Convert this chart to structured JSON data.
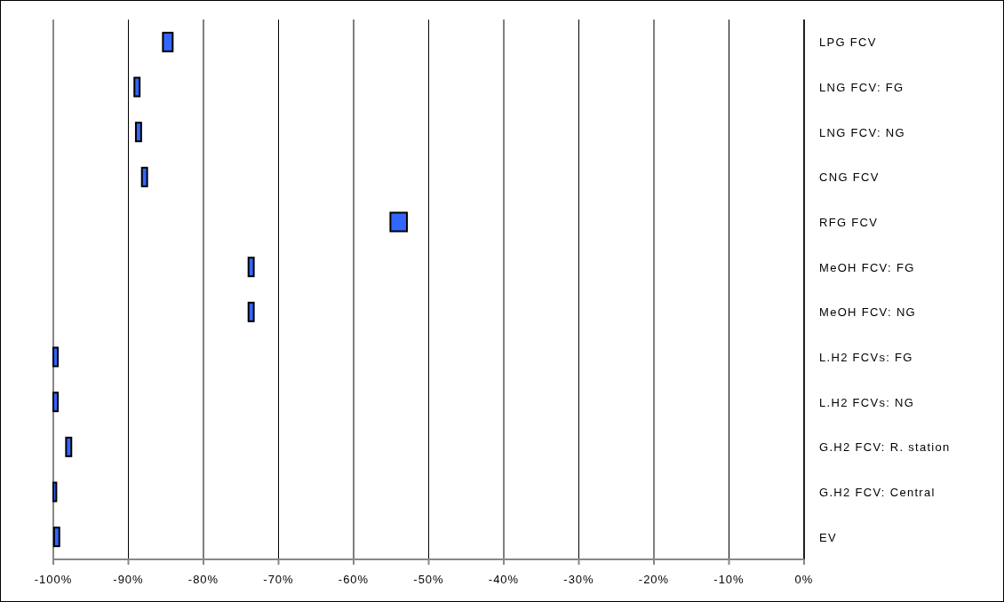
{
  "chart_data": {
    "type": "bar",
    "orientation": "horizontal",
    "categories": [
      "LPG FCV",
      "LNG FCV: FG",
      "LNG FCV: NG",
      "CNG FCV",
      "RFG FCV",
      "MeOH FCV: FG",
      "MeOH FCV: NG",
      "L.H2 FCVs: FG",
      "L.H2 FCVs: NG",
      "G.H2 FCV: R. station",
      "G.H2 FCV: Central",
      "EV"
    ],
    "base": [
      -85.4,
      -89.2,
      -89.0,
      -88.2,
      -55.1,
      -74.0,
      -74.0,
      -100,
      -100,
      -98.3,
      -100,
      -99.9
    ],
    "values": [
      1.3,
      0.7,
      0.7,
      0.7,
      2.2,
      0.7,
      0.7,
      0.6,
      0.6,
      0.7,
      0.4,
      0.7
    ],
    "color": "#3366ff",
    "xlim": [
      -100,
      0
    ],
    "xticks": [
      {
        "value": -100,
        "label": "-100%"
      },
      {
        "value": -90,
        "label": "-90%"
      },
      {
        "value": -80,
        "label": "-80%"
      },
      {
        "value": -70,
        "label": "-70%"
      },
      {
        "value": -60,
        "label": "-60%"
      },
      {
        "value": -50,
        "label": "-50%"
      },
      {
        "value": -40,
        "label": "-40%"
      },
      {
        "value": -30,
        "label": "-30%"
      },
      {
        "value": -20,
        "label": "-20%"
      },
      {
        "value": -10,
        "label": "-10%"
      },
      {
        "value": 0,
        "label": "0%"
      }
    ],
    "grid": "x"
  }
}
